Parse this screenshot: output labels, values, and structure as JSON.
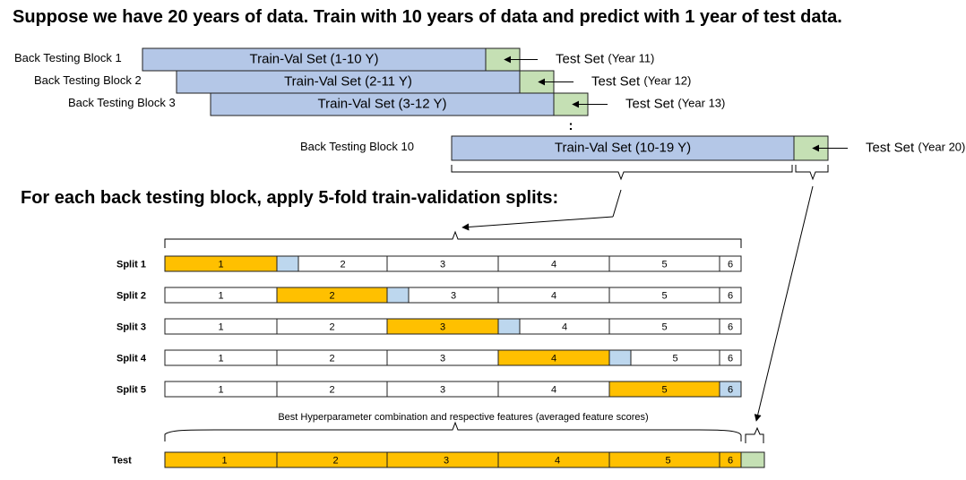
{
  "headline": "Suppose we have 20 years of data. Train with 10 years of data and predict with 1 year of test data.",
  "subheadline": "For each back testing block, apply 5-fold train-validation splits:",
  "colors": {
    "train_val": "#b4c7e7",
    "test": "#c5e0b4",
    "fold_highlight": "#ffc000",
    "validation": "#bdd7ee",
    "fold_plain": "#ffffff",
    "stroke": "#1f1f1f"
  },
  "back_testing": {
    "blocks": [
      {
        "label": "Back Testing Block 1",
        "train_text": "Train-Val Set (1-10 Y)",
        "test_text": "Test Set",
        "test_year": "(Year 11)"
      },
      {
        "label": "Back Testing Block 2",
        "train_text": "Train-Val Set (2-11 Y)",
        "test_text": "Test Set",
        "test_year": "(Year 12)"
      },
      {
        "label": "Back Testing Block 3",
        "train_text": "Train-Val Set (3-12 Y)",
        "test_text": "Test Set",
        "test_year": "(Year 13)"
      },
      {
        "label": "Back Testing Block 10",
        "train_text": "Train-Val Set (10-19 Y)",
        "test_text": "Test Set",
        "test_year": "(Year 20)"
      }
    ],
    "ellipsis": ":"
  },
  "cv": {
    "folds": [
      "1",
      "2",
      "3",
      "4",
      "5",
      "6"
    ],
    "splits": [
      {
        "label": "Split 1",
        "highlight": 1
      },
      {
        "label": "Split 2",
        "highlight": 2
      },
      {
        "label": "Split 3",
        "highlight": 3
      },
      {
        "label": "Split 4",
        "highlight": 4
      },
      {
        "label": "Split 5",
        "highlight": 5
      }
    ],
    "summary": "Best Hyperparameter combination and respective features (averaged feature scores)",
    "test_label": "Test"
  }
}
